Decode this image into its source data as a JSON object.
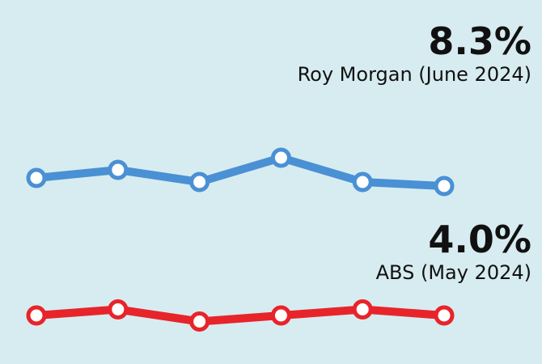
{
  "chart_data": {
    "type": "line",
    "categories": [
      "",
      "",
      "",
      "",
      "",
      ""
    ],
    "series": [
      {
        "name": "Roy Morgan (June 2024)",
        "latest": "8.3%",
        "values": [
          8.5,
          8.7,
          8.4,
          9.0,
          8.4,
          8.3
        ],
        "color": "#4a90d4"
      },
      {
        "name": "ABS (May 2024)",
        "latest": "4.0%",
        "values": [
          4.0,
          4.1,
          3.9,
          4.0,
          4.1,
          4.0
        ],
        "color": "#e8242b"
      }
    ],
    "grid": false,
    "legend": "none",
    "background": "#d7ecf0"
  },
  "callouts": {
    "roy": {
      "value": "8.3%",
      "label": "Roy Morgan (June 2024)"
    },
    "abs": {
      "value": "4.0%",
      "label": "ABS (May 2024)"
    }
  }
}
